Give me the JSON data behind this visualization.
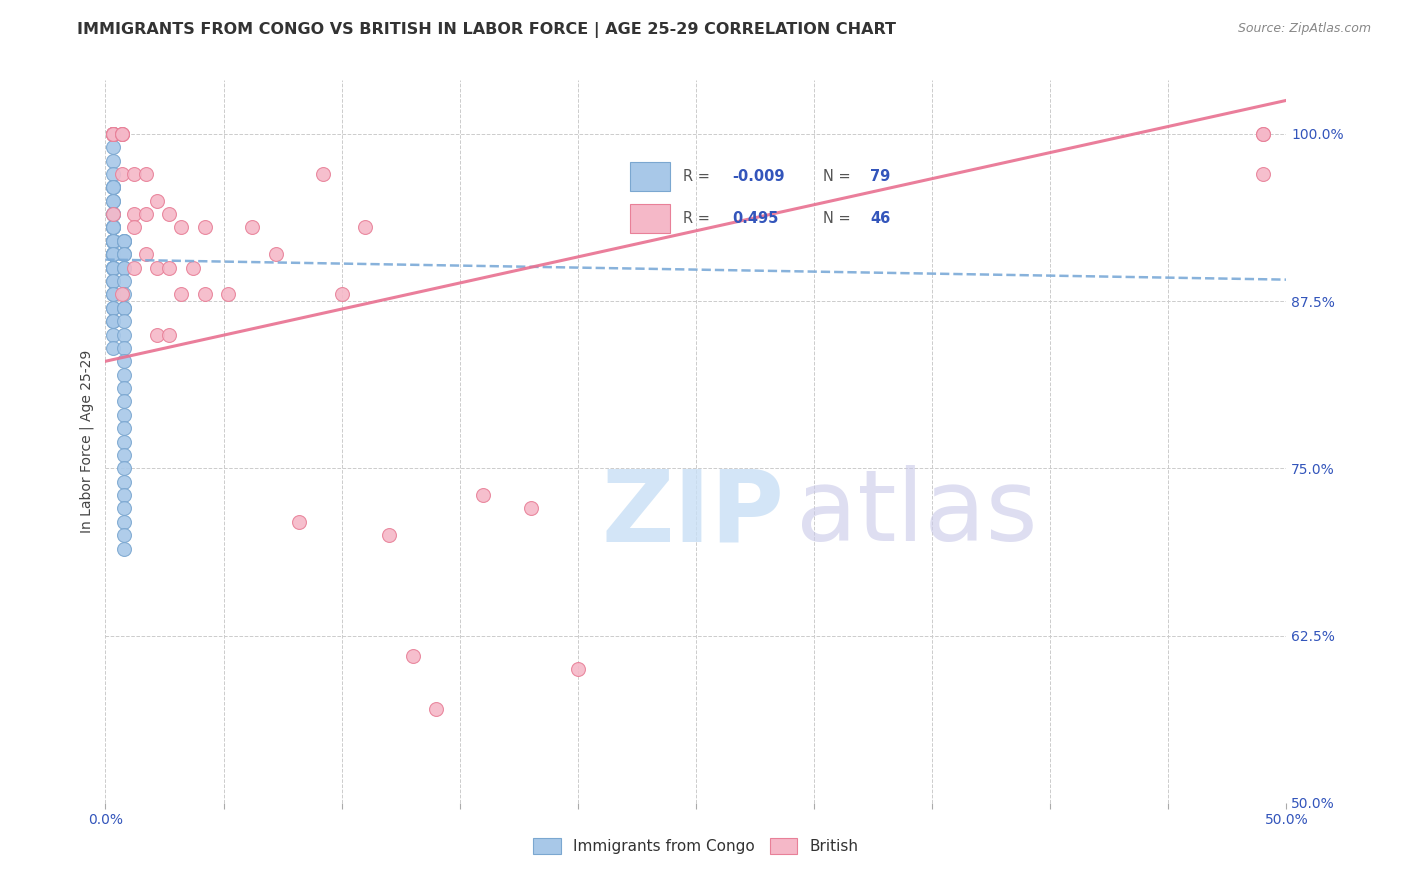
{
  "title": "IMMIGRANTS FROM CONGO VS BRITISH IN LABOR FORCE | AGE 25-29 CORRELATION CHART",
  "source": "Source: ZipAtlas.com",
  "ylabel": "In Labor Force | Age 25-29",
  "xlim": [
    0.0,
    0.5
  ],
  "ylim": [
    0.5,
    1.04
  ],
  "xticks": [
    0.0,
    0.05,
    0.1,
    0.15,
    0.2,
    0.25,
    0.3,
    0.35,
    0.4,
    0.45,
    0.5
  ],
  "yticks": [
    0.5,
    0.625,
    0.75,
    0.875,
    1.0
  ],
  "yticklabels_right": [
    "50.0%",
    "62.5%",
    "75.0%",
    "87.5%",
    "100.0%"
  ],
  "legend_blue_R": "-0.009",
  "legend_blue_N": "79",
  "legend_pink_R": "0.495",
  "legend_pink_N": "46",
  "blue_scatter_color": "#a8c8e8",
  "blue_edge_color": "#7ba7d0",
  "pink_scatter_color": "#f5b8c8",
  "pink_edge_color": "#e88098",
  "blue_line_color": "#7baad8",
  "pink_line_color": "#e87090",
  "congo_scatter_x": [
    0.003,
    0.003,
    0.003,
    0.003,
    0.003,
    0.003,
    0.003,
    0.003,
    0.003,
    0.003,
    0.003,
    0.003,
    0.003,
    0.003,
    0.003,
    0.003,
    0.003,
    0.003,
    0.003,
    0.003,
    0.003,
    0.003,
    0.003,
    0.003,
    0.003,
    0.003,
    0.003,
    0.003,
    0.003,
    0.003,
    0.003,
    0.003,
    0.003,
    0.003,
    0.003,
    0.003,
    0.003,
    0.003,
    0.003,
    0.003,
    0.003,
    0.003,
    0.003,
    0.003,
    0.003,
    0.003,
    0.003,
    0.003,
    0.003,
    0.003,
    0.008,
    0.008,
    0.008,
    0.008,
    0.008,
    0.008,
    0.008,
    0.008,
    0.008,
    0.008,
    0.008,
    0.008,
    0.008,
    0.008,
    0.008,
    0.008,
    0.008,
    0.008,
    0.008,
    0.008,
    0.008,
    0.008,
    0.008,
    0.008,
    0.008,
    0.008,
    0.008,
    0.008,
    0.008
  ],
  "congo_scatter_y": [
    1.0,
    0.99,
    0.98,
    0.97,
    0.96,
    0.96,
    0.96,
    0.96,
    0.95,
    0.95,
    0.94,
    0.94,
    0.94,
    0.93,
    0.93,
    0.93,
    0.93,
    0.93,
    0.92,
    0.92,
    0.92,
    0.92,
    0.92,
    0.92,
    0.92,
    0.92,
    0.91,
    0.91,
    0.91,
    0.91,
    0.91,
    0.91,
    0.91,
    0.91,
    0.9,
    0.9,
    0.9,
    0.9,
    0.9,
    0.9,
    0.89,
    0.89,
    0.88,
    0.88,
    0.87,
    0.87,
    0.86,
    0.86,
    0.85,
    0.84,
    0.92,
    0.92,
    0.92,
    0.91,
    0.91,
    0.9,
    0.9,
    0.89,
    0.88,
    0.87,
    0.87,
    0.86,
    0.85,
    0.84,
    0.83,
    0.82,
    0.81,
    0.8,
    0.79,
    0.78,
    0.77,
    0.76,
    0.75,
    0.74,
    0.73,
    0.72,
    0.71,
    0.7,
    0.69
  ],
  "british_scatter_x": [
    0.003,
    0.003,
    0.003,
    0.003,
    0.003,
    0.003,
    0.003,
    0.007,
    0.007,
    0.007,
    0.007,
    0.007,
    0.012,
    0.012,
    0.012,
    0.012,
    0.017,
    0.017,
    0.017,
    0.022,
    0.022,
    0.022,
    0.027,
    0.027,
    0.027,
    0.032,
    0.032,
    0.037,
    0.042,
    0.042,
    0.052,
    0.062,
    0.072,
    0.082,
    0.092,
    0.1,
    0.11,
    0.12,
    0.13,
    0.14,
    0.16,
    0.18,
    0.2,
    0.49,
    0.49,
    0.49
  ],
  "british_scatter_y": [
    1.0,
    1.0,
    1.0,
    1.0,
    1.0,
    1.0,
    0.94,
    1.0,
    1.0,
    1.0,
    0.97,
    0.88,
    0.97,
    0.94,
    0.93,
    0.9,
    0.97,
    0.94,
    0.91,
    0.95,
    0.9,
    0.85,
    0.94,
    0.9,
    0.85,
    0.93,
    0.88,
    0.9,
    0.93,
    0.88,
    0.88,
    0.93,
    0.91,
    0.71,
    0.97,
    0.88,
    0.93,
    0.7,
    0.61,
    0.57,
    0.73,
    0.72,
    0.6,
    1.0,
    1.0,
    0.97
  ],
  "congo_trendline_x": [
    0.0,
    0.5
  ],
  "congo_trendline_y": [
    0.906,
    0.891
  ],
  "british_trendline_x": [
    0.0,
    0.5
  ],
  "british_trendline_y": [
    0.83,
    1.025
  ],
  "grid_color": "#cccccc",
  "background_color": "#ffffff",
  "title_fontsize": 11.5,
  "source_fontsize": 9,
  "axis_label_fontsize": 10,
  "tick_fontsize": 10,
  "legend_fontsize": 11,
  "watermark_zip_color": "#c8dff5",
  "watermark_atlas_color": "#c8c8e8"
}
